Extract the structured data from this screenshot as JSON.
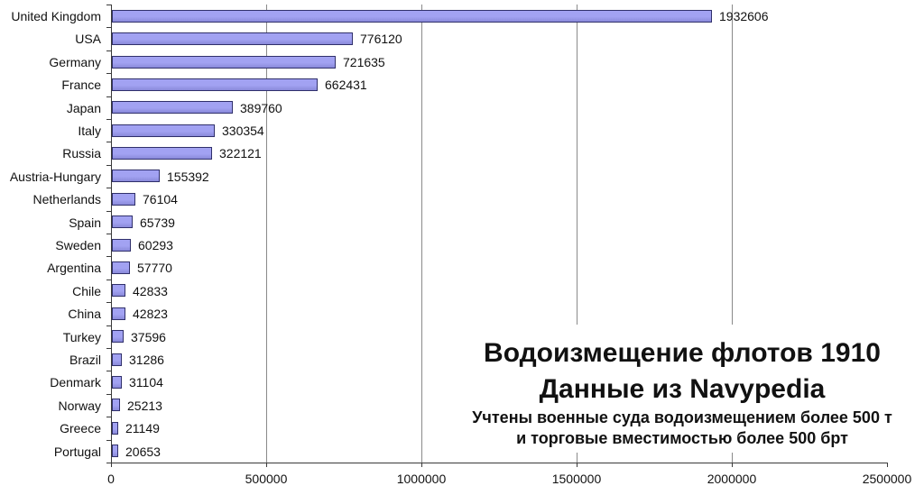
{
  "chart_data": {
    "type": "bar",
    "orientation": "horizontal",
    "title": "Водоизмещение флотов 1910",
    "subtitle": "Данные из Navypedia",
    "note_line1": "Учтены военные суда водоизмещением более 500 т",
    "note_line2": "и торговые вместимостью более 500 брт",
    "categories": [
      "United Kingdom",
      "USA",
      "Germany",
      "France",
      "Japan",
      "Italy",
      "Russia",
      "Austria-Hungary",
      "Netherlands",
      "Spain",
      "Sweden",
      "Argentina",
      "Chile",
      "China",
      "Turkey",
      "Brazil",
      "Denmark",
      "Norway",
      "Greece",
      "Portugal"
    ],
    "values": [
      1932606,
      776120,
      721635,
      662431,
      389760,
      330354,
      322121,
      155392,
      76104,
      65739,
      60293,
      57770,
      42833,
      42823,
      37596,
      31286,
      31104,
      25213,
      21149,
      20653
    ],
    "xlabel": "",
    "ylabel": "",
    "xlim": [
      0,
      2500000
    ],
    "xticks": [
      0,
      500000,
      1000000,
      1500000,
      2000000,
      2500000
    ],
    "grid": "vertical-only",
    "value_labels": true,
    "legend": "none"
  },
  "colors": {
    "bar_fill": "#A2A2F2",
    "bar_fill_dark": "#8A8ADA",
    "bar_border": "#30306B",
    "gridline": "#8A8A8A",
    "axis": "#3A3A3A",
    "text": "#111111",
    "background": "#FFFFFF"
  }
}
